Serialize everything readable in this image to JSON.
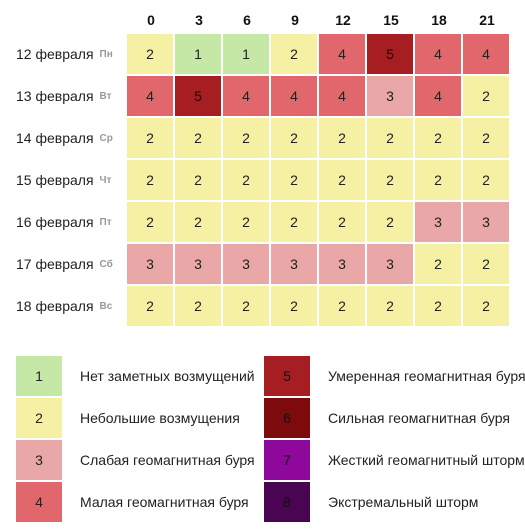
{
  "hours": [
    "0",
    "3",
    "6",
    "9",
    "12",
    "15",
    "18",
    "21"
  ],
  "days": [
    {
      "date": "12 февраля",
      "weekday": "Пн",
      "values": [
        2,
        1,
        1,
        2,
        4,
        5,
        4,
        4
      ]
    },
    {
      "date": "13 февраля",
      "weekday": "Вт",
      "values": [
        4,
        5,
        4,
        4,
        4,
        3,
        4,
        2
      ]
    },
    {
      "date": "14 февраля",
      "weekday": "Ср",
      "values": [
        2,
        2,
        2,
        2,
        2,
        2,
        2,
        2
      ]
    },
    {
      "date": "15 февраля",
      "weekday": "Чт",
      "values": [
        2,
        2,
        2,
        2,
        2,
        2,
        2,
        2
      ]
    },
    {
      "date": "16 февраля",
      "weekday": "Пт",
      "values": [
        2,
        2,
        2,
        2,
        2,
        2,
        3,
        3
      ]
    },
    {
      "date": "17 февраля",
      "weekday": "Сб",
      "values": [
        3,
        3,
        3,
        3,
        3,
        3,
        2,
        2
      ]
    },
    {
      "date": "18 февраля",
      "weekday": "Вс",
      "values": [
        2,
        2,
        2,
        2,
        2,
        2,
        2,
        2
      ]
    }
  ],
  "level_colors": {
    "1": "#c5e8a7",
    "2": "#f5f0a3",
    "3": "#e9a7a8",
    "4": "#e1676c",
    "5": "#a61e22",
    "6": "#7d0a0c",
    "7": "#8f089c",
    "8": "#4a0552"
  },
  "legend": [
    {
      "level": "1",
      "label": "Нет заметных возмущений"
    },
    {
      "level": "2",
      "label": "Небольшие возмущения"
    },
    {
      "level": "3",
      "label": "Слабая геомагнитная буря"
    },
    {
      "level": "4",
      "label": "Малая геомагнитная буря"
    },
    {
      "level": "5",
      "label": "Умеренная геомагнитная буря"
    },
    {
      "level": "6",
      "label": "Сильная геомагнитная буря"
    },
    {
      "level": "7",
      "label": "Жесткий геомагнитный шторм"
    },
    {
      "level": "8",
      "label": "Экстремальный шторм"
    }
  ]
}
